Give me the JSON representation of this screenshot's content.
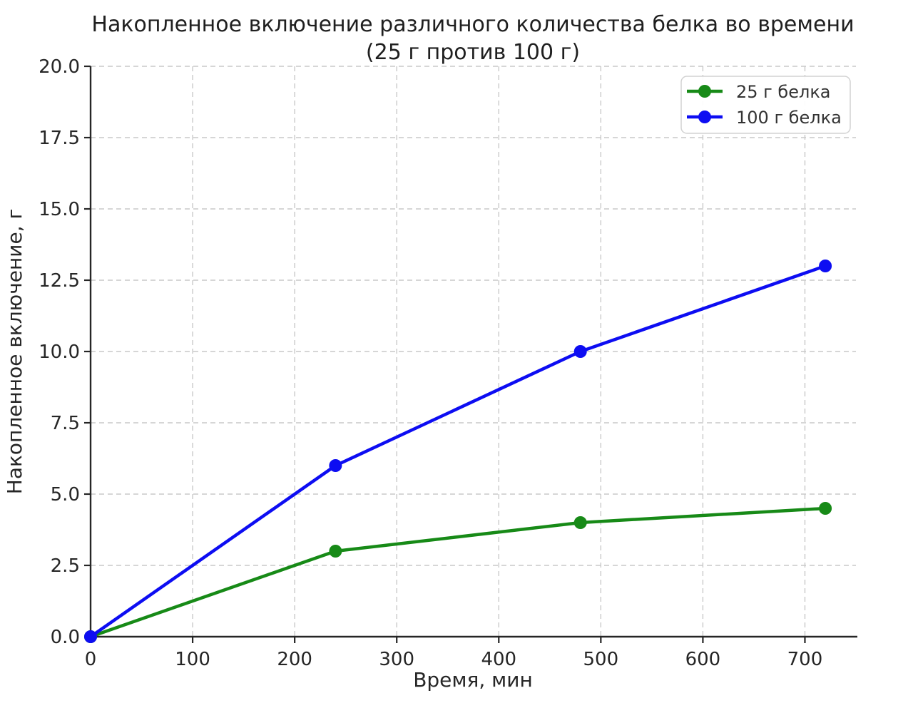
{
  "figure": {
    "background": "#ffffff"
  },
  "chart_data": {
    "type": "line",
    "title": "Накопленное включение различного количества белка во времени (25 г против 100 г)",
    "title_lines": [
      "Накопленное включение различного количества белка во времени",
      "(25 г против 100 г)"
    ],
    "xlabel": "Время, мин",
    "ylabel": "Накопленное включение, г",
    "x": [
      0,
      240,
      480,
      720
    ],
    "series": [
      {
        "name": "25 г белка",
        "color": "#178a17",
        "values": [
          0,
          3.0,
          4.0,
          4.5
        ]
      },
      {
        "name": "100 г белка",
        "color": "#0d0df2",
        "values": [
          0,
          6.0,
          10.0,
          13.0
        ]
      }
    ],
    "xlim": [
      0,
      750
    ],
    "ylim": [
      0,
      20
    ],
    "xticks": [
      0,
      100,
      200,
      300,
      400,
      500,
      600,
      700
    ],
    "xtick_labels": [
      "0",
      "100",
      "200",
      "300",
      "400",
      "500",
      "600",
      "700"
    ],
    "yticks": [
      0,
      2.5,
      5,
      7.5,
      10,
      12.5,
      15,
      17.5,
      20
    ],
    "ytick_labels": [
      "0.0",
      "2.5",
      "5.0",
      "7.5",
      "10.0",
      "12.5",
      "15.0",
      "17.5",
      "20.0"
    ],
    "grid": true,
    "grid_style": "dashed",
    "legend_position": "upper right",
    "marker": "circle",
    "marker_radius": 9,
    "line_width": 4.5
  },
  "colors": {
    "grid": "#c9c9c9",
    "axis": "#262626",
    "tick_text": "#262626",
    "title_text": "#1f1f1f",
    "legend_text": "#333333",
    "legend_border": "#d2d2d2",
    "legend_fill": "#ffffff"
  }
}
